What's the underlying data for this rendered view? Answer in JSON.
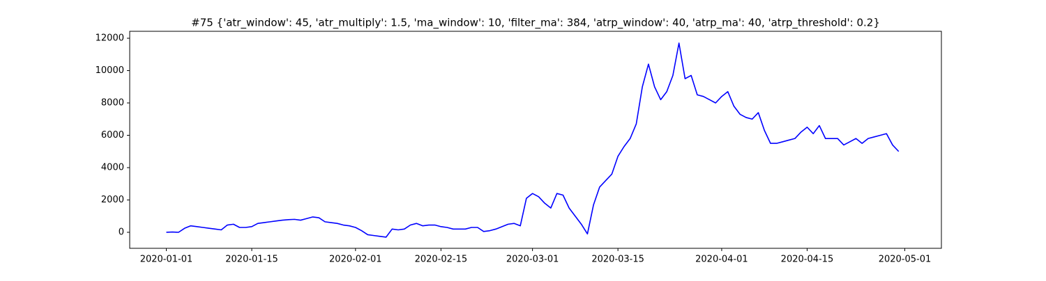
{
  "chart_data": {
    "type": "line",
    "title": "#75 {'atr_window': 45, 'atr_multiply': 1.5, 'ma_window': 10, 'filter_ma': 384, 'atrp_window': 40, 'atrp_ma': 40, 'atrp_threshold': 0.2}",
    "color": "#0000ff",
    "x": [
      "2020-01-01",
      "2020-01-02",
      "2020-01-03",
      "2020-01-04",
      "2020-01-05",
      "2020-01-06",
      "2020-01-07",
      "2020-01-08",
      "2020-01-09",
      "2020-01-10",
      "2020-01-11",
      "2020-01-12",
      "2020-01-13",
      "2020-01-14",
      "2020-01-15",
      "2020-01-16",
      "2020-01-17",
      "2020-01-18",
      "2020-01-19",
      "2020-01-20",
      "2020-01-21",
      "2020-01-22",
      "2020-01-23",
      "2020-01-24",
      "2020-01-25",
      "2020-01-26",
      "2020-01-27",
      "2020-01-28",
      "2020-01-29",
      "2020-01-30",
      "2020-01-31",
      "2020-02-01",
      "2020-02-02",
      "2020-02-03",
      "2020-02-04",
      "2020-02-05",
      "2020-02-06",
      "2020-02-07",
      "2020-02-08",
      "2020-02-09",
      "2020-02-10",
      "2020-02-11",
      "2020-02-12",
      "2020-02-13",
      "2020-02-14",
      "2020-02-15",
      "2020-02-16",
      "2020-02-17",
      "2020-02-18",
      "2020-02-19",
      "2020-02-20",
      "2020-02-21",
      "2020-02-22",
      "2020-02-23",
      "2020-02-24",
      "2020-02-25",
      "2020-02-26",
      "2020-02-27",
      "2020-02-28",
      "2020-02-29",
      "2020-03-01",
      "2020-03-02",
      "2020-03-03",
      "2020-03-04",
      "2020-03-05",
      "2020-03-06",
      "2020-03-07",
      "2020-03-08",
      "2020-03-09",
      "2020-03-10",
      "2020-03-11",
      "2020-03-12",
      "2020-03-13",
      "2020-03-14",
      "2020-03-15",
      "2020-03-16",
      "2020-03-17",
      "2020-03-18",
      "2020-03-19",
      "2020-03-20",
      "2020-03-21",
      "2020-03-22",
      "2020-03-23",
      "2020-03-24",
      "2020-03-25",
      "2020-03-26",
      "2020-03-27",
      "2020-03-28",
      "2020-03-29",
      "2020-03-30",
      "2020-03-31",
      "2020-04-01",
      "2020-04-02",
      "2020-04-03",
      "2020-04-04",
      "2020-04-05",
      "2020-04-06",
      "2020-04-07",
      "2020-04-08",
      "2020-04-09",
      "2020-04-10",
      "2020-04-11",
      "2020-04-12",
      "2020-04-13",
      "2020-04-14",
      "2020-04-15",
      "2020-04-16",
      "2020-04-17",
      "2020-04-18",
      "2020-04-19",
      "2020-04-20",
      "2020-04-21",
      "2020-04-22",
      "2020-04-23",
      "2020-04-24",
      "2020-04-25",
      "2020-04-26",
      "2020-04-27",
      "2020-04-28",
      "2020-04-29",
      "2020-04-30"
    ],
    "values": [
      0,
      20,
      0,
      250,
      400,
      350,
      300,
      250,
      200,
      150,
      450,
      500,
      300,
      300,
      350,
      550,
      600,
      650,
      700,
      750,
      780,
      800,
      750,
      850,
      950,
      900,
      650,
      600,
      550,
      450,
      400,
      300,
      100,
      -150,
      -200,
      -250,
      -300,
      200,
      150,
      200,
      450,
      550,
      400,
      450,
      450,
      350,
      300,
      200,
      200,
      200,
      300,
      300,
      50,
      100,
      200,
      350,
      500,
      550,
      400,
      2100,
      2400,
      2200,
      1800,
      1500,
      2400,
      2300,
      1500,
      1000,
      500,
      -100,
      1700,
      2800,
      3200,
      3600,
      4700,
      5300,
      5800,
      6700,
      9000,
      10400,
      9000,
      8200,
      8700,
      9700,
      11700,
      9500,
      9700,
      8500,
      8400,
      8200,
      8000,
      8400,
      8700,
      7800,
      7300,
      7100,
      7000,
      7400,
      6300,
      5500,
      5500,
      5600,
      5700,
      5800,
      6200,
      6500,
      6100,
      6600,
      5800,
      5800,
      5800,
      5400,
      5600,
      5800,
      5500,
      5800,
      5900,
      6000,
      6100,
      5400,
      5000
    ],
    "xlim": [
      "2019-12-26",
      "2020-05-07"
    ],
    "xticks": [
      "2020-01-01",
      "2020-01-15",
      "2020-02-01",
      "2020-02-15",
      "2020-03-01",
      "2020-03-15",
      "2020-04-01",
      "2020-04-15",
      "2020-05-01"
    ],
    "ylim": [
      -990,
      12430
    ],
    "yticks": [
      0,
      2000,
      4000,
      6000,
      8000,
      10000,
      12000
    ],
    "grid": false
  }
}
